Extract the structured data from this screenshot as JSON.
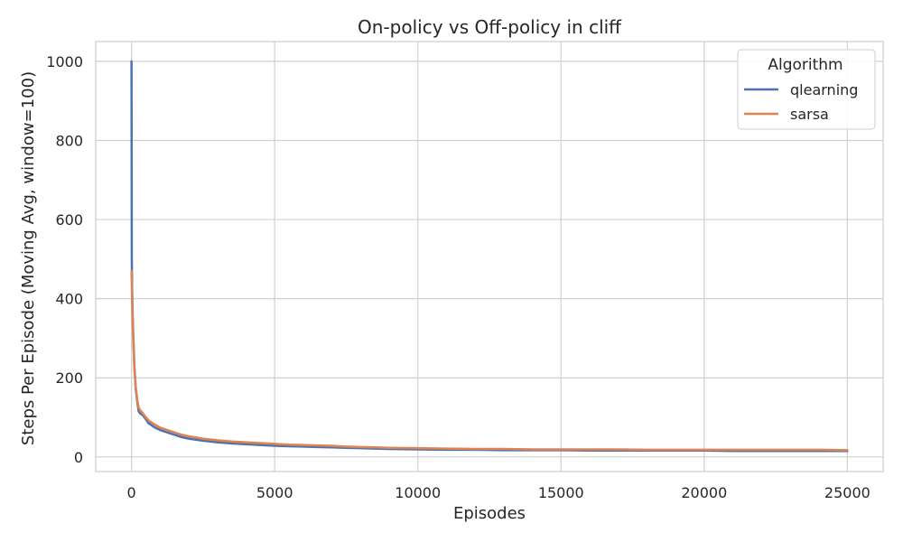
{
  "chart_data": {
    "type": "line",
    "title": "On-policy vs Off-policy in cliff",
    "xlabel": "Episodes",
    "ylabel": "Steps Per Episode (Moving Avg, window=100)",
    "xlim": [
      -1250,
      26250
    ],
    "ylim": [
      -37,
      1050
    ],
    "xticks": [
      0,
      5000,
      10000,
      15000,
      20000,
      25000
    ],
    "yticks": [
      0,
      200,
      400,
      600,
      800,
      1000
    ],
    "grid": true,
    "legend": {
      "title": "Algorithm",
      "placement": "top-right"
    },
    "series": [
      {
        "name": "qlearning",
        "color": "#4c72b0",
        "x": [
          0,
          10,
          20,
          40,
          60,
          80,
          100,
          150,
          200,
          250,
          300,
          400,
          500,
          600,
          800,
          1000,
          1250,
          1500,
          1750,
          2000,
          2500,
          3000,
          3500,
          4000,
          4500,
          5000,
          5500,
          6000,
          6500,
          7000,
          7500,
          8000,
          8500,
          9000,
          10000,
          11000,
          12000,
          13000,
          14000,
          15000,
          16000,
          17000,
          18000,
          19000,
          20000,
          21000,
          22000,
          23000,
          24000,
          25000
        ],
        "y": [
          1000,
          500,
          430,
          360,
          310,
          270,
          230,
          170,
          140,
          115,
          110,
          105,
          95,
          85,
          75,
          68,
          62,
          56,
          50,
          46,
          41,
          37,
          34,
          32,
          30,
          28,
          27,
          26,
          25,
          24,
          23,
          22,
          21,
          20,
          19,
          18,
          18,
          17,
          17,
          17,
          16,
          16,
          16,
          16,
          16,
          15,
          15,
          15,
          15,
          15
        ]
      },
      {
        "name": "sarsa",
        "color": "#dd8452",
        "x": [
          0,
          10,
          20,
          40,
          60,
          80,
          100,
          150,
          200,
          250,
          300,
          400,
          500,
          600,
          800,
          1000,
          1250,
          1500,
          1750,
          2000,
          2500,
          3000,
          3500,
          4000,
          4500,
          5000,
          5500,
          6000,
          6500,
          7000,
          7500,
          8000,
          8500,
          9000,
          10000,
          11000,
          12000,
          13000,
          14000,
          15000,
          16000,
          17000,
          18000,
          19000,
          20000,
          21000,
          22000,
          23000,
          24000,
          25000
        ],
        "y": [
          470,
          440,
          400,
          340,
          300,
          260,
          220,
          175,
          145,
          125,
          118,
          110,
          100,
          92,
          82,
          74,
          68,
          62,
          56,
          52,
          46,
          42,
          39,
          37,
          35,
          33,
          31,
          30,
          29,
          28,
          26,
          25,
          24,
          23,
          22,
          21,
          20,
          20,
          19,
          19,
          19,
          19,
          18,
          18,
          18,
          18,
          18,
          18,
          18,
          17
        ]
      }
    ]
  }
}
